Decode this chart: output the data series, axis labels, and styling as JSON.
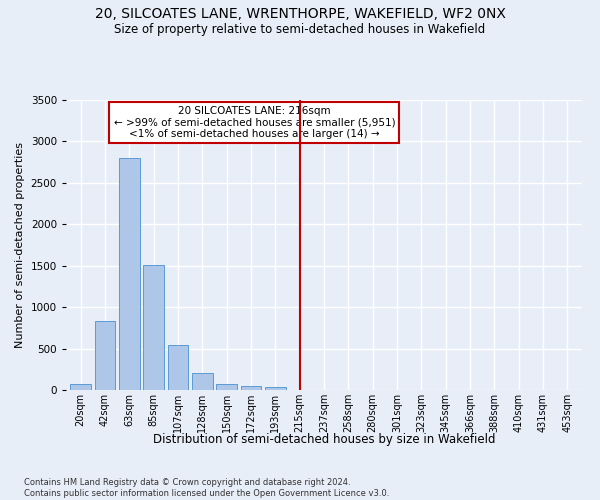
{
  "title": "20, SILCOATES LANE, WRENTHORPE, WAKEFIELD, WF2 0NX",
  "subtitle": "Size of property relative to semi-detached houses in Wakefield",
  "xlabel": "Distribution of semi-detached houses by size in Wakefield",
  "ylabel": "Number of semi-detached properties",
  "footnote": "Contains HM Land Registry data © Crown copyright and database right 2024.\nContains public sector information licensed under the Open Government Licence v3.0.",
  "categories": [
    "20sqm",
    "42sqm",
    "63sqm",
    "85sqm",
    "107sqm",
    "128sqm",
    "150sqm",
    "172sqm",
    "193sqm",
    "215sqm",
    "237sqm",
    "258sqm",
    "280sqm",
    "301sqm",
    "323sqm",
    "345sqm",
    "366sqm",
    "388sqm",
    "410sqm",
    "431sqm",
    "453sqm"
  ],
  "values": [
    70,
    830,
    2800,
    1510,
    540,
    210,
    70,
    50,
    35,
    5,
    0,
    0,
    0,
    0,
    0,
    0,
    0,
    0,
    0,
    0,
    0
  ],
  "bar_color": "#aec6e8",
  "bar_edge_color": "#5b9bd5",
  "background_color": "#e8eef8",
  "grid_color": "#ffffff",
  "vline_x_index": 9,
  "vline_color": "#c00000",
  "annotation_line1": "20 SILCOATES LANE: 216sqm",
  "annotation_line2": "← >99% of semi-detached houses are smaller (5,951)",
  "annotation_line3": "<1% of semi-detached houses are larger (14) →",
  "box_color": "#c00000",
  "ylim": [
    0,
    3500
  ],
  "title_fontsize": 10,
  "subtitle_fontsize": 8.5,
  "tick_fontsize": 7,
  "ylabel_fontsize": 8,
  "xlabel_fontsize": 8.5,
  "annotation_fontsize": 7.5,
  "footnote_fontsize": 6
}
